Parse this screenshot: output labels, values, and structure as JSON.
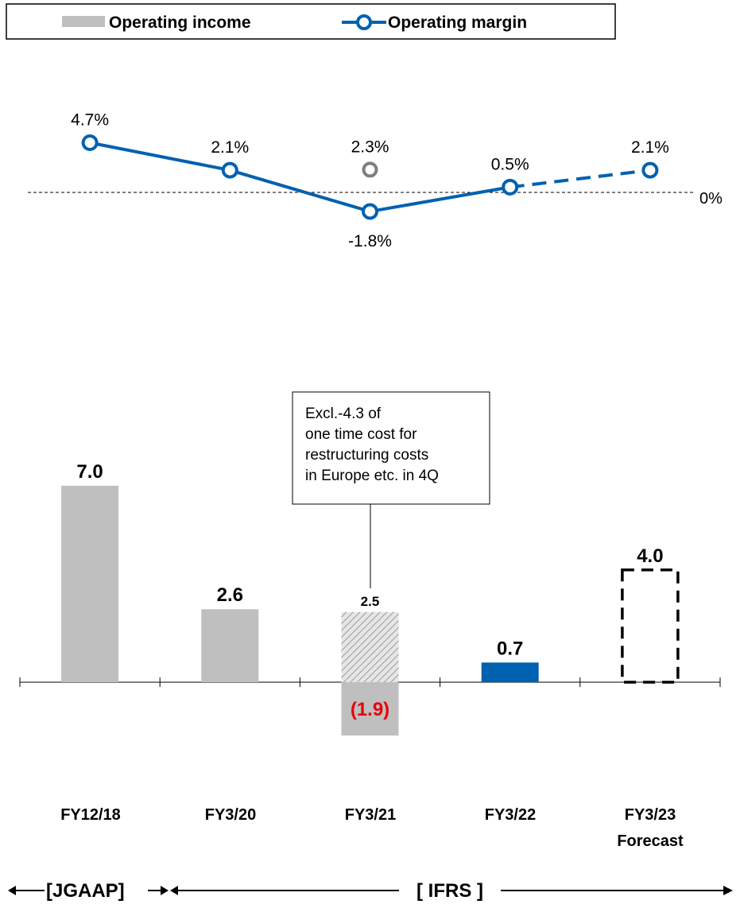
{
  "legend": {
    "bar_label": "Operating income",
    "line_label": "Operating margin",
    "placement": "top"
  },
  "chart_data": {
    "type": "bar+line",
    "categories": [
      "FY12/18",
      "FY3/20",
      "FY3/21",
      "FY3/22",
      "FY3/23"
    ],
    "category_sublabels": [
      "",
      "",
      "",
      "",
      "Forecast"
    ],
    "bars": {
      "name": "Operating income",
      "values": [
        7.0,
        2.6,
        -1.9,
        0.7,
        4.0
      ],
      "labels": [
        "7.0",
        "2.6",
        "(1.9)",
        "0.7",
        "4.0"
      ],
      "styles": [
        "solid",
        "solid",
        "solid",
        "highlight",
        "forecast-dashed"
      ],
      "excluding_one_time_cost": {
        "category": "FY3/21",
        "value": 2.5,
        "label": "2.5",
        "style": "hatched"
      },
      "negative_label_color": "#e8000b",
      "bar_color": "#bfbfbf",
      "highlight_color": "#0061b0"
    },
    "line": {
      "name": "Operating margin",
      "values": [
        4.7,
        2.1,
        -1.8,
        0.5,
        2.1
      ],
      "labels": [
        "4.7%",
        "2.1%",
        "-1.8%",
        "0.5%",
        "2.1%"
      ],
      "forecast_segment_dashed": true,
      "color": "#0061b0",
      "excluding_one_time_cost": {
        "category": "FY3/21",
        "value": 2.3,
        "label": "2.3%",
        "color": "#7f7f7f"
      },
      "zero_line_label": "0%"
    },
    "annotation": {
      "lines": [
        "Excl.-4.3 of",
        "one time cost for",
        "restructuring costs",
        "in Europe etc. in 4Q"
      ],
      "category": "FY3/21"
    },
    "accounting_periods": [
      {
        "label": "[JGAAP]",
        "from": "FY12/18",
        "to": "FY12/18"
      },
      {
        "label": "[ IFRS ]",
        "from": "FY3/20",
        "to": "FY3/23"
      }
    ]
  }
}
